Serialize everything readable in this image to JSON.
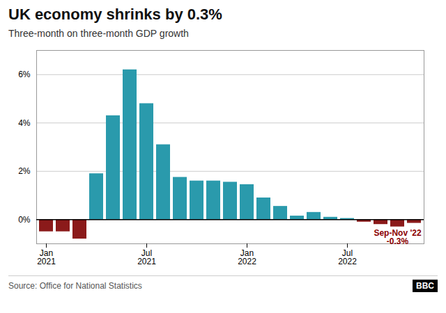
{
  "chart_data": {
    "type": "bar",
    "title": "UK economy shrinks by 0.3%",
    "subtitle": "Three-month on three-month GDP growth",
    "source": "Source: Office for National Statistics",
    "logo": "BBC",
    "categories": [
      "Jan\n2021",
      null,
      null,
      null,
      null,
      null,
      "Jul\n2021",
      null,
      null,
      null,
      null,
      null,
      "Jan\n2022",
      null,
      null,
      null,
      null,
      null,
      "Jul\n2022",
      null,
      null,
      null,
      null
    ],
    "values": [
      -0.5,
      -0.5,
      -0.8,
      1.9,
      4.3,
      6.2,
      4.8,
      3.1,
      1.75,
      1.6,
      1.6,
      1.55,
      1.45,
      0.9,
      0.55,
      0.15,
      0.3,
      0.1,
      0.05,
      -0.1,
      -0.2,
      -0.3,
      -0.15
    ],
    "colors": [
      "#8B1A1A",
      "#8B1A1A",
      "#8B1A1A",
      "#2a9aac",
      "#2a9aac",
      "#2a9aac",
      "#2a9aac",
      "#2a9aac",
      "#2a9aac",
      "#2a9aac",
      "#2a9aac",
      "#2a9aac",
      "#2a9aac",
      "#2a9aac",
      "#2a9aac",
      "#2a9aac",
      "#2a9aac",
      "#2a9aac",
      "#2a9aac",
      "#8B1A1A",
      "#8B1A1A",
      "#8B1A1A",
      "#8B1A1A"
    ],
    "ylim": [
      -1.0,
      7.0
    ],
    "yticks": [
      {
        "value": 0,
        "label": "0%"
      },
      {
        "value": 2,
        "label": "2%"
      },
      {
        "value": 4,
        "label": "4%"
      },
      {
        "value": 6,
        "label": "6%"
      }
    ],
    "grid": true,
    "annotations": [
      {
        "text": "Sep-Nov '22\n-0.3%",
        "color": "#8B0000",
        "index": 21
      }
    ]
  }
}
